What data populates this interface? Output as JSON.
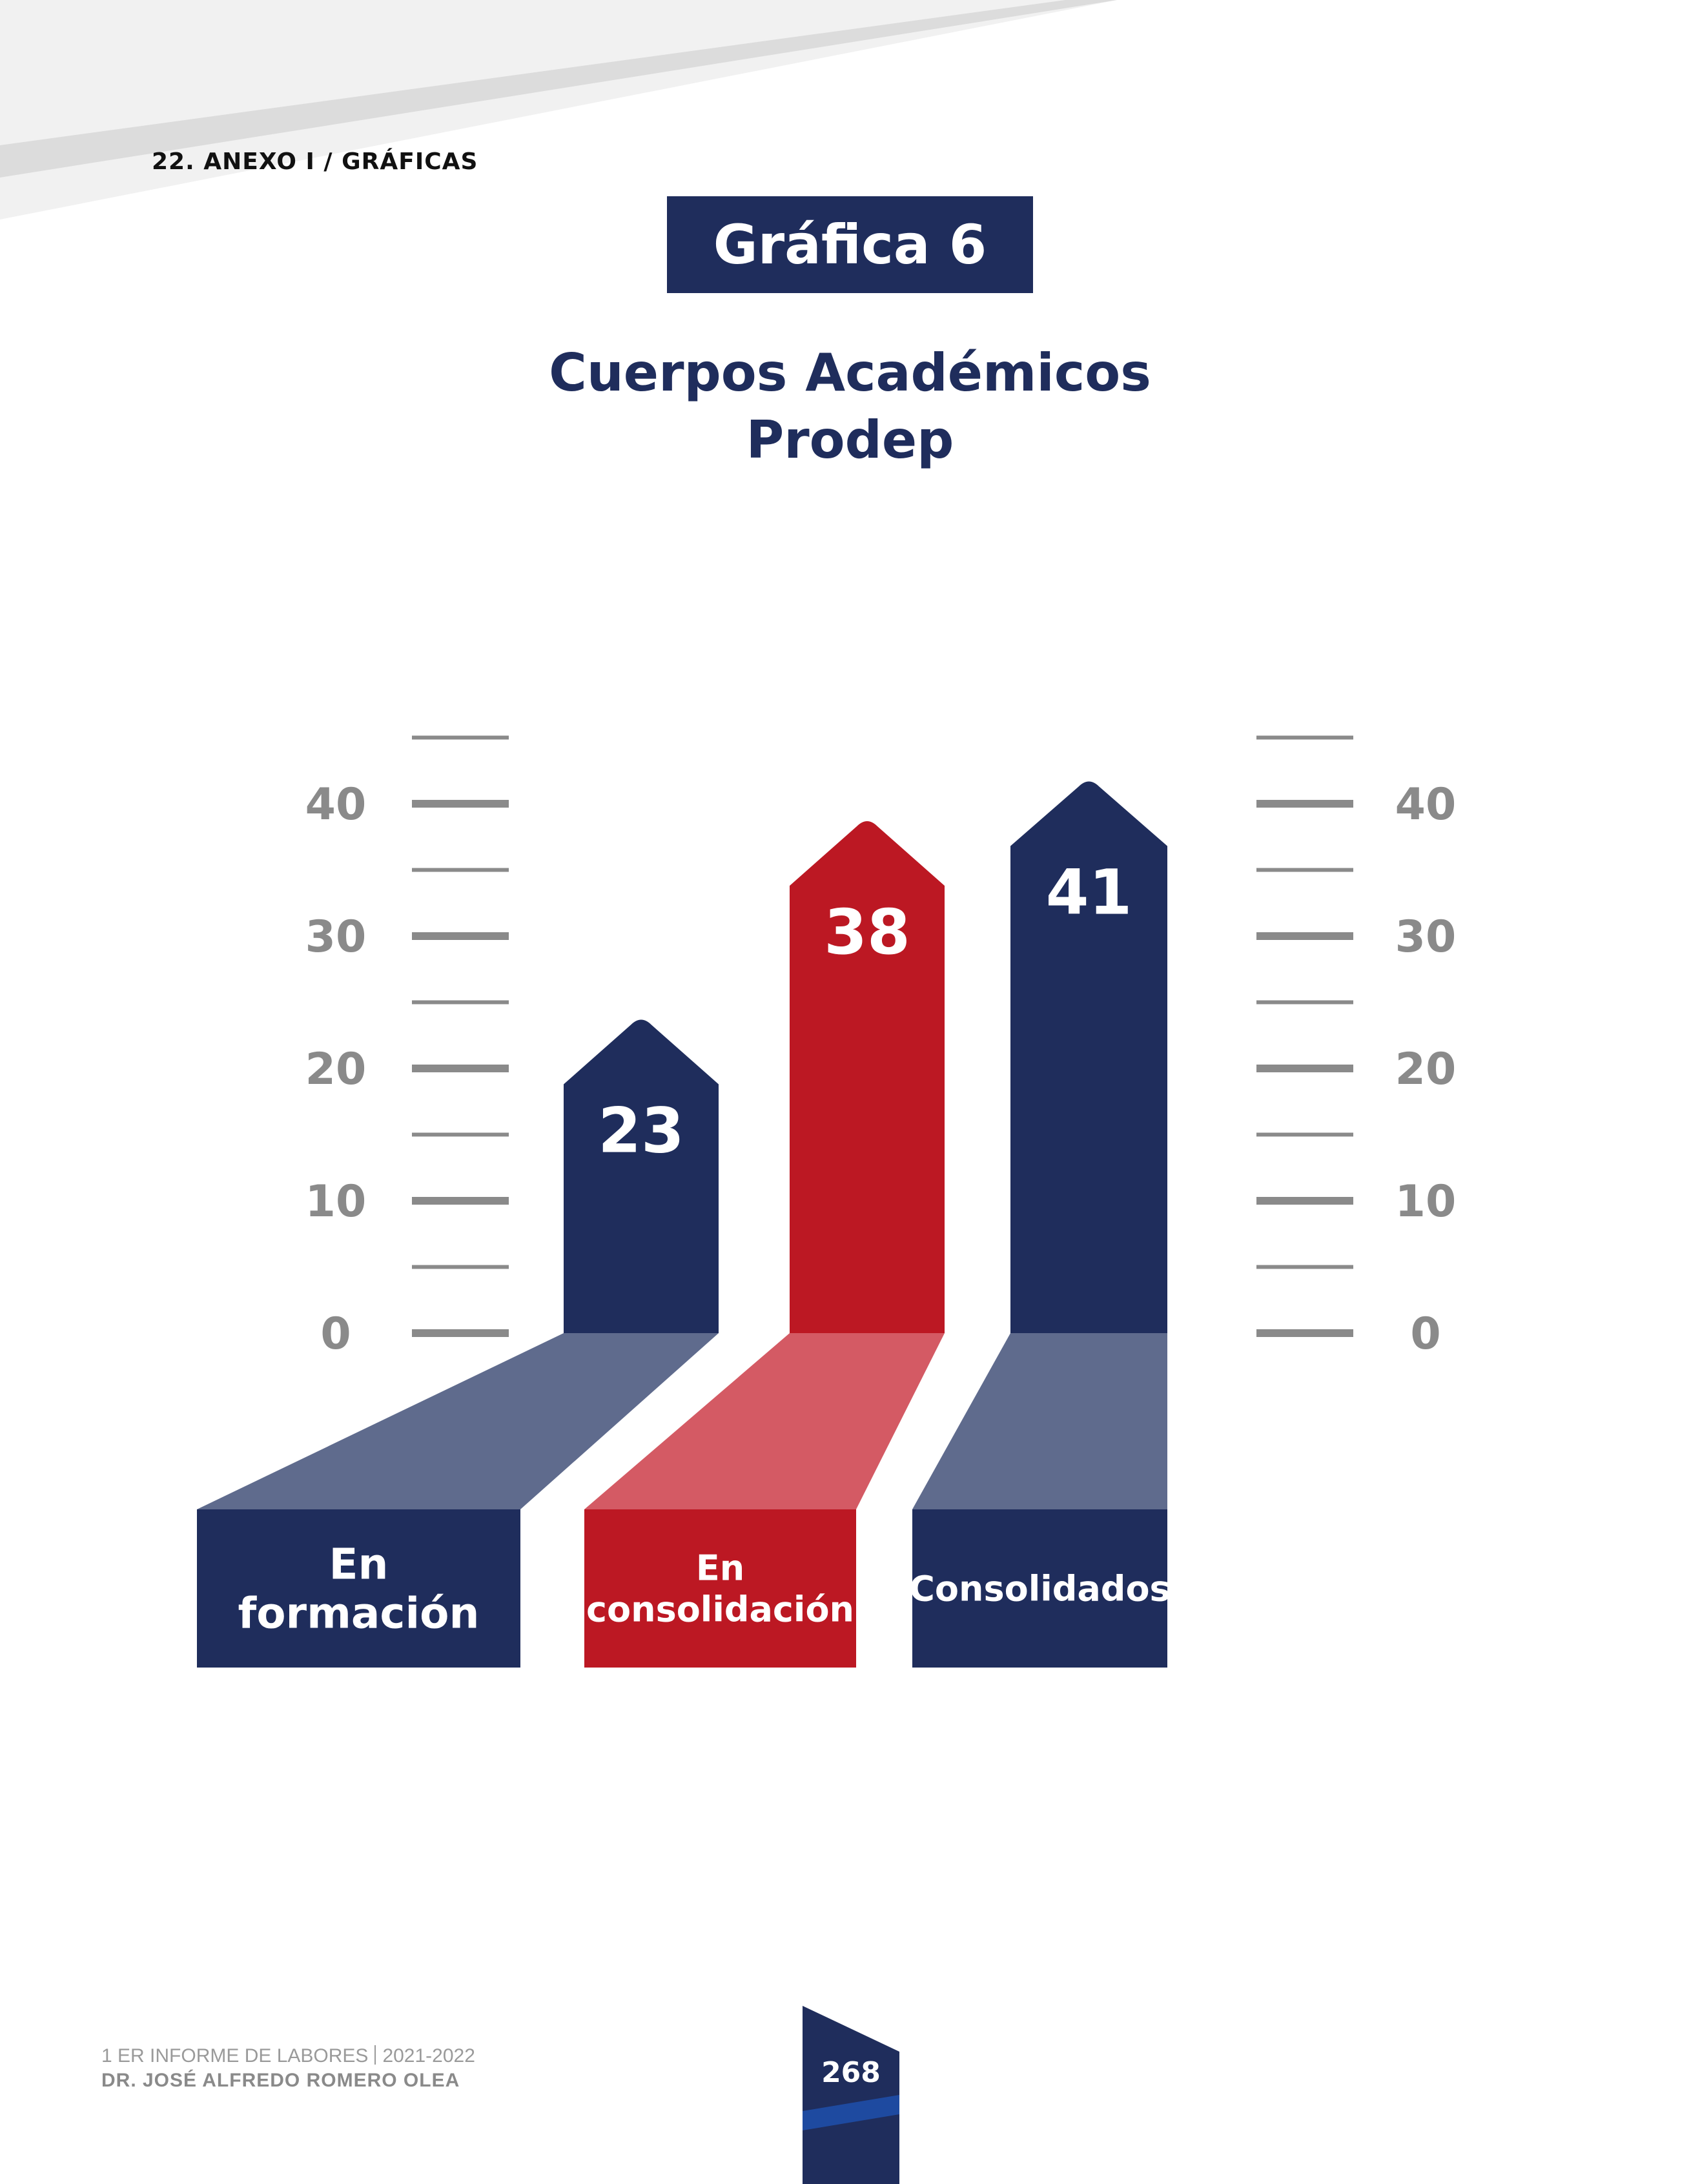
{
  "section_label": "22.  ANEXO I / GRÁFICAS",
  "title_badge": "Gráfica 6",
  "subtitle_lines": [
    "Cuerpos Académicos",
    "Prodep"
  ],
  "colors": {
    "navy": "#1f2d5c",
    "red": "#bc1823",
    "axis_gray": "#8a8a8a"
  },
  "chart_data": {
    "type": "bar",
    "categories": [
      "En formación",
      "En consolidación",
      "Consolidados"
    ],
    "category_label_lines": [
      [
        "En",
        "formación"
      ],
      [
        "En",
        "consolidación"
      ],
      [
        "Consolidados"
      ]
    ],
    "values": [
      23,
      38,
      41
    ],
    "bar_colors": [
      "#1f2d5c",
      "#bc1823",
      "#1f2d5c"
    ],
    "ylim": [
      0,
      45
    ],
    "yticks": [
      0,
      10,
      20,
      30,
      40
    ],
    "grid": false,
    "axes_both_sides": true
  },
  "footer": {
    "report": "1 ER INFORME DE LABORES",
    "years": "2021-2022",
    "author": "DR. JOSÉ ALFREDO ROMERO OLEA",
    "page_number": "268"
  }
}
